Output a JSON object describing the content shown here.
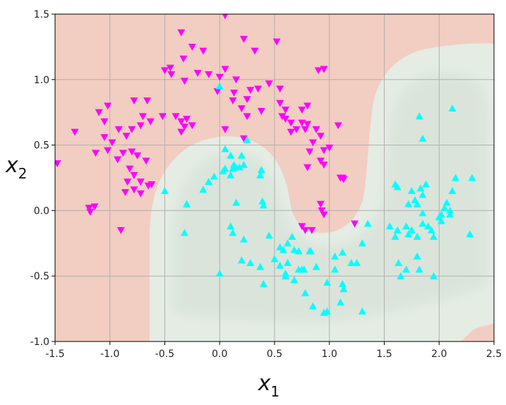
{
  "chart_data": {
    "type": "scatter",
    "title": "",
    "xlabel": "x",
    "xlabel_sub": "1",
    "ylabel": "x",
    "ylabel_sub": "2",
    "xlim": [
      -1.5,
      2.5
    ],
    "ylim": [
      -1.0,
      1.5
    ],
    "xticks": [
      -1.5,
      -1.0,
      -0.5,
      0.0,
      0.5,
      1.0,
      1.5,
      2.0,
      2.5
    ],
    "xtick_labels": [
      "-1.5",
      "-1.0",
      "-0.5",
      "0.0",
      "0.5",
      "1.0",
      "1.5",
      "2.0",
      "2.5"
    ],
    "yticks": [
      -1.0,
      -0.5,
      0.0,
      0.5,
      1.0,
      1.5
    ],
    "ytick_labels": [
      "-1.0",
      "-0.5",
      "0.0",
      "0.5",
      "1.0",
      "1.5"
    ],
    "grid": true,
    "background_regions": [
      {
        "class": "0",
        "color": "#f2cdc1"
      },
      {
        "class": "1",
        "color": "#e4ece4"
      }
    ],
    "series": [
      {
        "marker": "triangle-down",
        "color": "#ff00ff",
        "x": [
          0.05,
          -0.35,
          -0.25,
          -0.15,
          0.22,
          0.32,
          0.52,
          -0.33,
          -0.45,
          -0.5,
          -0.44,
          -0.2,
          -0.32,
          -0.1,
          0.0,
          0.05,
          0.15,
          0.28,
          0.35,
          0.45,
          0.55,
          0.9,
          0.95,
          -0.02,
          0.13,
          0.25,
          0.12,
          0.2,
          0.25,
          0.38,
          0.55,
          0.6,
          0.57,
          0.8,
          -1.32,
          -1.1,
          -1.02,
          -1.05,
          -0.92,
          -0.78,
          -0.7,
          -0.66,
          -0.8,
          -0.72,
          -0.63,
          -0.52,
          -0.4,
          -0.35,
          -0.32,
          -0.3,
          -0.25,
          -0.35,
          -1.13,
          -0.85,
          -0.98,
          -1.05,
          -0.88,
          -0.8,
          -0.75,
          -0.67,
          -0.82,
          -0.93,
          -1.02,
          -0.78,
          -0.72,
          -0.62,
          -0.84,
          -0.78,
          -0.72,
          -0.86,
          -0.65,
          -1.19,
          -1.18,
          -1.14,
          -0.9,
          -1.48,
          0.05,
          0.22,
          0.6,
          0.65,
          0.75,
          0.65,
          0.7,
          0.75,
          0.78,
          0.8,
          0.88,
          0.92,
          0.85,
          0.95,
          1.0,
          1.08,
          0.92,
          0.82,
          0.95,
          0.8,
          1.1,
          1.13,
          0.92,
          1.12,
          0.93,
          0.95,
          0.78,
          0.84,
          0.75,
          1.23
        ],
        "y": [
          1.49,
          1.36,
          1.25,
          1.22,
          1.31,
          1.22,
          1.29,
          1.16,
          1.09,
          1.07,
          1.04,
          1.05,
          0.99,
          1.04,
          1.02,
          1.08,
          1.0,
          0.92,
          0.93,
          0.97,
          0.93,
          1.07,
          1.08,
          0.91,
          0.9,
          0.85,
          0.84,
          0.78,
          0.72,
          0.76,
          0.82,
          0.77,
          0.72,
          0.8,
          0.6,
          0.75,
          0.8,
          0.68,
          0.62,
          0.84,
          0.72,
          0.84,
          0.62,
          0.65,
          0.68,
          0.72,
          0.72,
          0.68,
          0.64,
          0.7,
          0.65,
          0.6,
          0.44,
          0.57,
          0.52,
          0.56,
          0.44,
          0.45,
          0.42,
          0.38,
          0.32,
          0.39,
          0.46,
          0.27,
          0.22,
          0.2,
          0.22,
          0.16,
          0.13,
          0.14,
          0.19,
          0.02,
          -0.01,
          0.03,
          -0.15,
          0.36,
          0.62,
          0.55,
          0.7,
          0.67,
          0.77,
          0.6,
          0.62,
          0.67,
          0.62,
          0.66,
          0.62,
          0.57,
          0.52,
          0.46,
          0.48,
          0.65,
          0.38,
          0.45,
          0.35,
          0.33,
          0.25,
          0.24,
          0.05,
          0.25,
          0.0,
          -0.03,
          -0.15,
          -0.15,
          -0.12,
          -0.1
        ]
      },
      {
        "marker": "triangle-up",
        "color": "#00ffff",
        "x": [
          0.0,
          0.05,
          0.1,
          0.13,
          0.18,
          0.22,
          0.15,
          0.12,
          0.05,
          0.2,
          0.25,
          0.37,
          0.38,
          0.03,
          0.1,
          -0.05,
          -0.15,
          -0.1,
          -0.5,
          -0.32,
          0.15,
          0.1,
          0.12,
          0.22,
          0.4,
          0.39,
          0.45,
          0.55,
          0.62,
          0.66,
          0.68,
          0.72,
          0.82,
          0.83,
          0.58,
          0.6,
          0.62,
          0.77,
          0.28,
          0.37,
          0.4,
          0.5,
          0.55,
          0.6,
          0.68,
          0.75,
          0.85,
          0.95,
          0.98,
          1.05,
          1.05,
          1.12,
          1.2,
          1.25,
          1.3,
          1.35,
          0.72,
          0.78,
          0.88,
          0.98,
          1.1,
          1.12,
          1.13,
          1.3,
          -0.3,
          1.55,
          1.6,
          1.62,
          1.7,
          1.72,
          1.75,
          1.8,
          1.85,
          1.9,
          1.93,
          1.95,
          2.0,
          2.02,
          2.05,
          2.1,
          1.82,
          1.85,
          1.88,
          1.83,
          1.85,
          1.8,
          1.78,
          1.75,
          1.72,
          1.62,
          1.6,
          1.63,
          1.65,
          1.7,
          1.82,
          1.95,
          2.0,
          2.02,
          2.07,
          2.12,
          2.15,
          2.3,
          1.85,
          2.1,
          1.8,
          2.28,
          2.12,
          0.2,
          0.0
        ],
        "y": [
          0.95,
          0.47,
          0.42,
          0.35,
          0.33,
          0.35,
          0.33,
          0.32,
          0.32,
          0.42,
          0.54,
          0.27,
          0.31,
          0.3,
          0.27,
          0.26,
          0.16,
          0.22,
          0.15,
          -0.17,
          0.06,
          -0.12,
          -0.17,
          -0.22,
          0.04,
          0.07,
          -0.19,
          -0.28,
          -0.25,
          -0.2,
          -0.3,
          -0.31,
          -0.31,
          -0.31,
          -0.3,
          -0.48,
          -0.4,
          -0.45,
          -0.4,
          -0.43,
          -0.56,
          -0.37,
          -0.42,
          -0.5,
          -0.53,
          -0.45,
          -0.73,
          -0.78,
          -0.55,
          -0.35,
          -0.45,
          -0.32,
          -0.4,
          -0.4,
          -0.25,
          -0.1,
          -0.45,
          -0.63,
          -0.43,
          -0.77,
          -0.7,
          -0.56,
          -0.6,
          -0.77,
          0.05,
          -0.12,
          -0.2,
          -0.15,
          -0.12,
          -0.18,
          -0.15,
          -0.2,
          -0.1,
          -0.12,
          -0.15,
          -0.2,
          -0.05,
          -0.08,
          0.02,
          0.0,
          0.72,
          0.55,
          0.2,
          0.17,
          0.12,
          0.05,
          0.08,
          0.15,
          0.05,
          0.18,
          0.2,
          -0.4,
          -0.5,
          -0.45,
          -0.45,
          -0.5,
          -0.05,
          -0.03,
          0.06,
          0.15,
          0.25,
          0.25,
          -0.02,
          -0.03,
          -0.35,
          -0.18,
          0.78,
          -0.38,
          -0.48
        ]
      }
    ]
  }
}
